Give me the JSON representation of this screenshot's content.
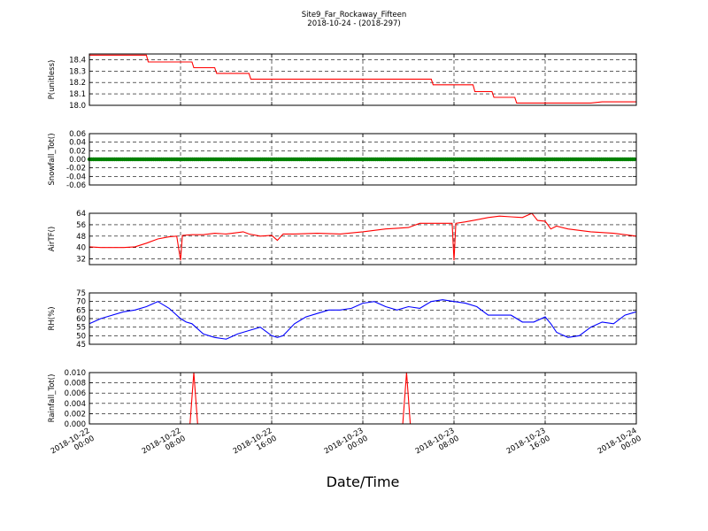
{
  "chart_data": {
    "type": "line",
    "title": "Site9_Far_Rockaway_Fifteen",
    "subtitle": "2018-10-24 - (2018-297)",
    "xlabel": "Date/Time",
    "xlim": [
      "2018-10-22 00:00",
      "2018-10-24 00:00"
    ],
    "xticks": [
      {
        "value": "2018-10-22 00:00",
        "date": "2018-10-22",
        "time": "00:00"
      },
      {
        "value": "2018-10-22 08:00",
        "date": "2018-10-22",
        "time": "08:00"
      },
      {
        "value": "2018-10-22 16:00",
        "date": "2018-10-22",
        "time": "16:00"
      },
      {
        "value": "2018-10-23 00:00",
        "date": "2018-10-23",
        "time": "00:00"
      },
      {
        "value": "2018-10-23 08:00",
        "date": "2018-10-23",
        "time": "08:00"
      },
      {
        "value": "2018-10-23 16:00",
        "date": "2018-10-23",
        "time": "16:00"
      },
      {
        "value": "2018-10-24 00:00",
        "date": "2018-10-24",
        "time": "00:00"
      }
    ],
    "grid": true,
    "panels": [
      {
        "ylabel": "P(unitless)",
        "ylim": [
          18.0,
          18.45
        ],
        "yticks": [
          "18.4",
          "18.3",
          "18.2",
          "18.1",
          "18.0"
        ],
        "ytick_values": [
          18.4,
          18.3,
          18.2,
          18.1,
          18.0
        ],
        "color": "#ff0000",
        "style": "line",
        "x": [
          "2018-10-22 00:00",
          "2018-10-22 03:00",
          "2018-10-22 05:00",
          "2018-10-22 05:10",
          "2018-10-22 07:00",
          "2018-10-22 08:00",
          "2018-10-22 09:00",
          "2018-10-22 09:10",
          "2018-10-22 11:00",
          "2018-10-22 11:10",
          "2018-10-22 14:00",
          "2018-10-22 14:10",
          "2018-10-22 20:00",
          "2018-10-23 00:00",
          "2018-10-23 04:00",
          "2018-10-23 06:00",
          "2018-10-23 06:10",
          "2018-10-23 08:00",
          "2018-10-23 09:40",
          "2018-10-23 09:50",
          "2018-10-23 11:20",
          "2018-10-23 11:30",
          "2018-10-23 13:20",
          "2018-10-23 13:30",
          "2018-10-23 17:00",
          "2018-10-23 20:00",
          "2018-10-23 21:00",
          "2018-10-24 00:00"
        ],
        "y": [
          18.44,
          18.44,
          18.44,
          18.38,
          18.38,
          18.38,
          18.38,
          18.33,
          18.33,
          18.28,
          18.28,
          18.23,
          18.23,
          18.23,
          18.23,
          18.23,
          18.18,
          18.18,
          18.18,
          18.12,
          18.12,
          18.07,
          18.07,
          18.02,
          18.02,
          18.02,
          18.03,
          18.03
        ]
      },
      {
        "ylabel": "Snowfall_Tot()",
        "ylim": [
          -0.06,
          0.06
        ],
        "yticks": [
          "0.06",
          "0.04",
          "0.02",
          "0.00",
          "-0.02",
          "-0.04",
          "-0.06"
        ],
        "ytick_values": [
          0.06,
          0.04,
          0.02,
          0.0,
          -0.02,
          -0.04,
          -0.06
        ],
        "color": "#008000",
        "style": "markers",
        "x": [
          "2018-10-22 00:00",
          "2018-10-24 00:00"
        ],
        "y": [
          0.0,
          0.0
        ]
      },
      {
        "ylabel": "AirTF()",
        "ylim": [
          28,
          64
        ],
        "yticks": [
          "64",
          "56",
          "48",
          "40",
          "32"
        ],
        "ytick_values": [
          64,
          56,
          48,
          40,
          32
        ],
        "color": "#ff0000",
        "style": "line",
        "x": [
          "2018-10-22 00:00",
          "2018-10-22 01:00",
          "2018-10-22 02:00",
          "2018-10-22 03:00",
          "2018-10-22 04:00",
          "2018-10-22 05:00",
          "2018-10-22 06:00",
          "2018-10-22 07:00",
          "2018-10-22 07:40",
          "2018-10-22 08:00",
          "2018-10-22 08:10",
          "2018-10-22 09:00",
          "2018-10-22 10:00",
          "2018-10-22 11:00",
          "2018-10-22 12:00",
          "2018-10-22 13:00",
          "2018-10-22 13:30",
          "2018-10-22 14:00",
          "2018-10-22 15:00",
          "2018-10-22 16:00",
          "2018-10-22 16:30",
          "2018-10-22 17:00",
          "2018-10-22 18:00",
          "2018-10-22 20:00",
          "2018-10-22 22:00",
          "2018-10-23 00:00",
          "2018-10-23 01:00",
          "2018-10-23 02:00",
          "2018-10-23 03:00",
          "2018-10-23 04:00",
          "2018-10-23 05:00",
          "2018-10-23 06:00",
          "2018-10-23 07:00",
          "2018-10-23 07:50",
          "2018-10-23 08:00",
          "2018-10-23 08:10",
          "2018-10-23 09:00",
          "2018-10-23 10:00",
          "2018-10-23 11:00",
          "2018-10-23 12:00",
          "2018-10-23 13:00",
          "2018-10-23 14:00",
          "2018-10-23 14:50",
          "2018-10-23 15:20",
          "2018-10-23 16:00",
          "2018-10-23 16:30",
          "2018-10-23 17:00",
          "2018-10-23 18:00",
          "2018-10-23 20:00",
          "2018-10-23 22:00",
          "2018-10-24 00:00"
        ],
        "y": [
          40.5,
          40.0,
          40.0,
          40.0,
          40.5,
          43.0,
          46.0,
          47.5,
          48.0,
          31.0,
          48.5,
          49.0,
          49.0,
          50.0,
          49.5,
          50.5,
          51.0,
          49.5,
          48.0,
          48.5,
          45.0,
          49.5,
          49.5,
          50.0,
          49.5,
          51.0,
          52.0,
          53.0,
          53.5,
          54.0,
          57.0,
          57.0,
          57.0,
          57.0,
          31.0,
          57.0,
          58.0,
          59.5,
          61.0,
          62.0,
          61.5,
          61.0,
          64.0,
          59.0,
          58.5,
          53.0,
          55.0,
          53.0,
          51.0,
          50.0,
          48.0
        ]
      },
      {
        "ylabel": "RH(%)",
        "ylim": [
          45,
          75
        ],
        "yticks": [
          "75",
          "70",
          "65",
          "60",
          "55",
          "50",
          "45"
        ],
        "ytick_values": [
          75,
          70,
          65,
          60,
          55,
          50,
          45
        ],
        "color": "#0000ff",
        "style": "line",
        "x": [
          "2018-10-22 00:00",
          "2018-10-22 01:00",
          "2018-10-22 02:00",
          "2018-10-22 03:00",
          "2018-10-22 04:00",
          "2018-10-22 05:00",
          "2018-10-22 06:00",
          "2018-10-22 07:00",
          "2018-10-22 08:00",
          "2018-10-22 08:30",
          "2018-10-22 09:00",
          "2018-10-22 10:00",
          "2018-10-22 11:00",
          "2018-10-22 12:00",
          "2018-10-22 13:00",
          "2018-10-22 14:00",
          "2018-10-22 15:00",
          "2018-10-22 16:00",
          "2018-10-22 16:30",
          "2018-10-22 17:00",
          "2018-10-22 18:00",
          "2018-10-22 19:00",
          "2018-10-22 20:00",
          "2018-10-22 21:00",
          "2018-10-22 22:00",
          "2018-10-22 23:00",
          "2018-10-23 00:00",
          "2018-10-23 01:00",
          "2018-10-23 02:00",
          "2018-10-23 03:00",
          "2018-10-23 04:00",
          "2018-10-23 05:00",
          "2018-10-23 06:00",
          "2018-10-23 07:00",
          "2018-10-23 08:00",
          "2018-10-23 09:00",
          "2018-10-23 10:00",
          "2018-10-23 11:00",
          "2018-10-23 12:00",
          "2018-10-23 13:00",
          "2018-10-23 14:00",
          "2018-10-23 15:00",
          "2018-10-23 16:00",
          "2018-10-23 16:30",
          "2018-10-23 17:00",
          "2018-10-23 18:00",
          "2018-10-23 19:00",
          "2018-10-23 20:00",
          "2018-10-23 21:00",
          "2018-10-23 22:00",
          "2018-10-23 23:00",
          "2018-10-24 00:00"
        ],
        "y": [
          57,
          60,
          62,
          64,
          65,
          67,
          70,
          66,
          60,
          58,
          57,
          51,
          49,
          48,
          51,
          53,
          55,
          50,
          49,
          50,
          57,
          61,
          63,
          65,
          65,
          66,
          69,
          70,
          67,
          65,
          67,
          66,
          70,
          71,
          70,
          69,
          67,
          62,
          62,
          62,
          58,
          58,
          61,
          57,
          52,
          49,
          50,
          55,
          58,
          57,
          62,
          64
        ]
      },
      {
        "ylabel": "Rainfall_Tot()",
        "ylim": [
          0.0,
          0.01
        ],
        "yticks": [
          "0.010",
          "0.008",
          "0.006",
          "0.004",
          "0.002",
          "0.000"
        ],
        "ytick_values": [
          0.01,
          0.008,
          0.006,
          0.004,
          0.002,
          0.0
        ],
        "color": "#ff0000",
        "style": "line",
        "x": [
          "2018-10-22 00:00",
          "2018-10-22 08:50",
          "2018-10-22 09:10",
          "2018-10-22 09:30",
          "2018-10-23 03:30",
          "2018-10-23 03:50",
          "2018-10-23 04:10",
          "2018-10-24 00:00"
        ],
        "y": [
          0.0,
          0.0,
          0.01,
          0.0,
          0.0,
          0.01,
          0.0,
          0.0
        ]
      }
    ]
  }
}
